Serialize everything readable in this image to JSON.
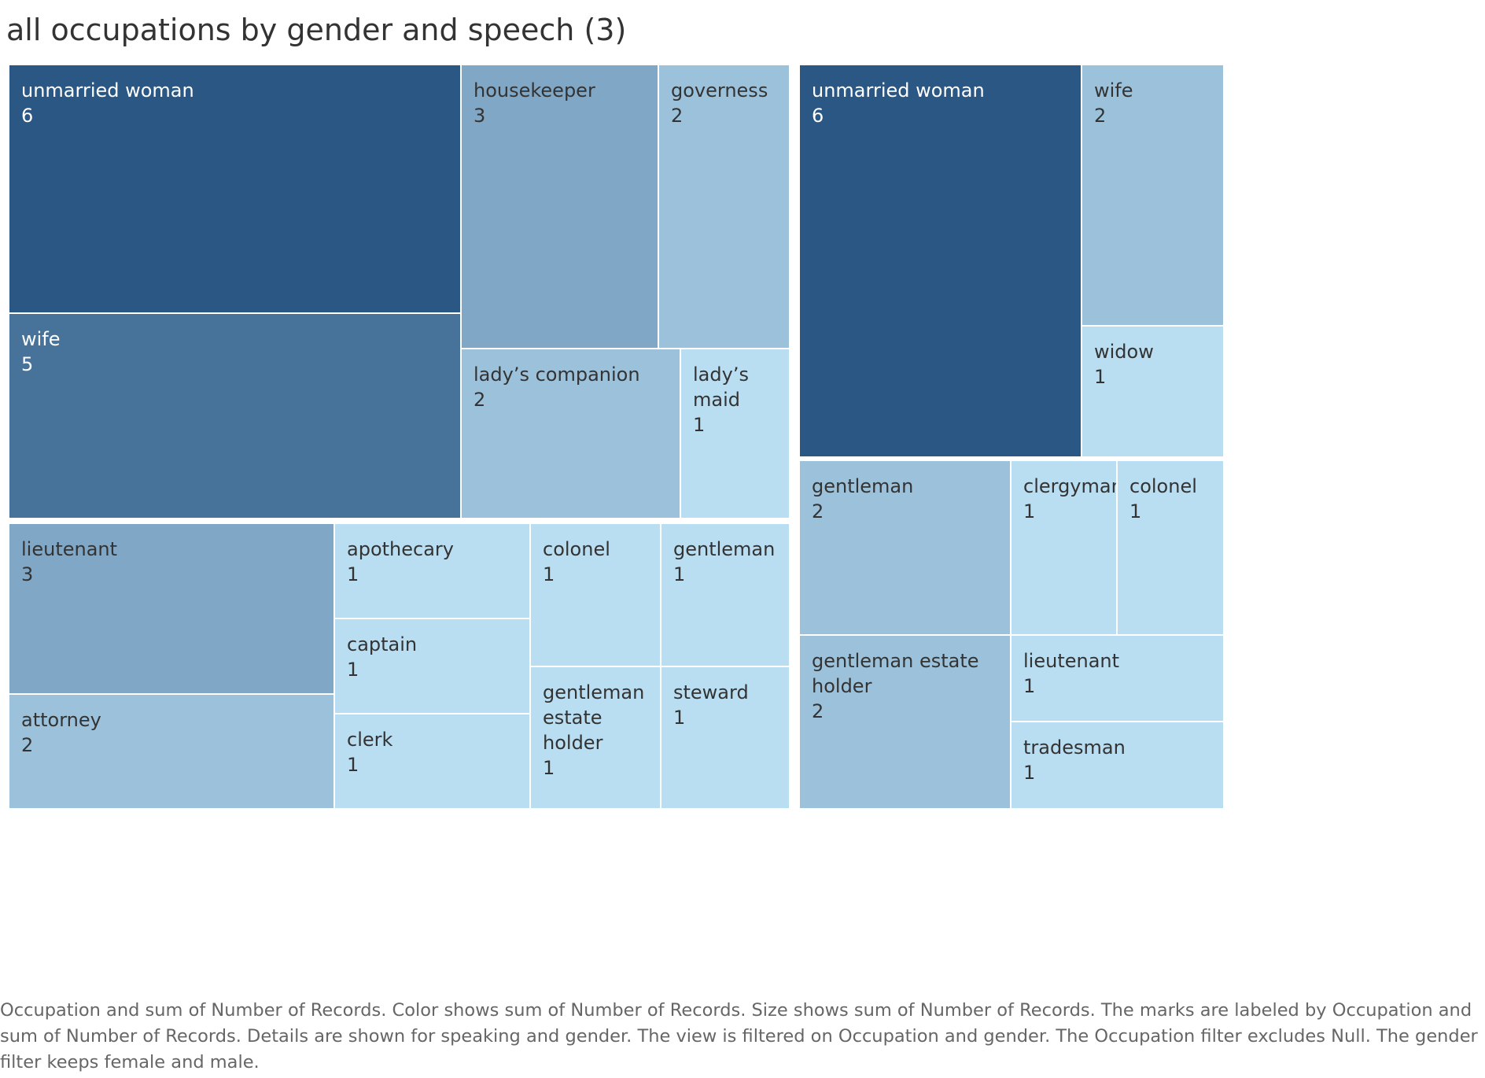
{
  "title": "all occupations by gender and speech (3)",
  "caption": "Occupation and sum of Number of Records.  Color shows sum of Number of Records.  Size shows sum of Number of Records.  The marks are labeled by Occupation and sum of Number of Records.  Details are shown for speaking and gender. The view is filtered on Occupation and gender. The Occupation filter excludes Null. The gender filter keeps female and male.",
  "chart_data": {
    "type": "treemap",
    "value_label": "Number of Records",
    "color_scale": {
      "low": "#b9ddf1",
      "high": "#2a5783"
    },
    "groups": [
      {
        "items": [
          {
            "occupation": "unmarried woman",
            "value": 6
          },
          {
            "occupation": "wife",
            "value": 5
          },
          {
            "occupation": "housekeeper",
            "value": 3
          },
          {
            "occupation": "governess",
            "value": 2
          },
          {
            "occupation": "lady’s companion",
            "value": 2
          },
          {
            "occupation": "lady’s maid",
            "value": 1
          }
        ]
      },
      {
        "items": [
          {
            "occupation": "unmarried woman",
            "value": 6
          },
          {
            "occupation": "wife",
            "value": 2
          },
          {
            "occupation": "widow",
            "value": 1
          }
        ]
      },
      {
        "items": [
          {
            "occupation": "lieutenant",
            "value": 3
          },
          {
            "occupation": "attorney",
            "value": 2
          },
          {
            "occupation": "apothecary",
            "value": 1
          },
          {
            "occupation": "captain",
            "value": 1
          },
          {
            "occupation": "clerk",
            "value": 1
          },
          {
            "occupation": "colonel",
            "value": 1
          },
          {
            "occupation": "gentleman estate holder",
            "value": 1
          },
          {
            "occupation": "gentleman",
            "value": 1
          },
          {
            "occupation": "steward",
            "value": 1
          }
        ]
      },
      {
        "items": [
          {
            "occupation": "gentleman",
            "value": 2
          },
          {
            "occupation": "gentleman estate holder",
            "value": 2
          },
          {
            "occupation": "clergyman",
            "value": 1
          },
          {
            "occupation": "colonel",
            "value": 1
          },
          {
            "occupation": "lieutenant",
            "value": 1
          },
          {
            "occupation": "tradesman",
            "value": 1
          }
        ]
      }
    ]
  }
}
